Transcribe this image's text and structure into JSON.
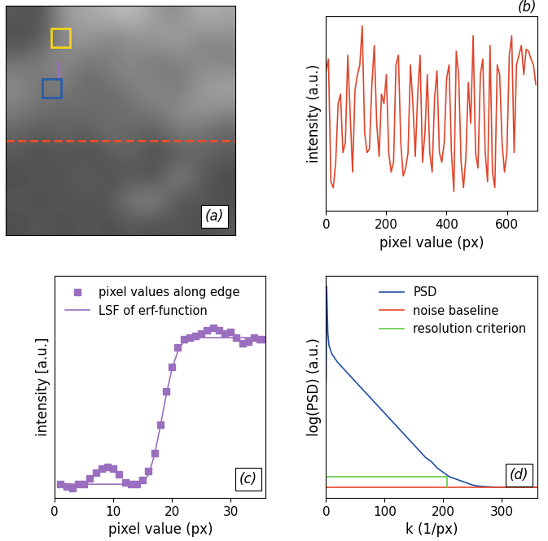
{
  "chart_data": [
    {
      "type": "heatmap",
      "tick_labels": false,
      "clim": [
        0,
        1
      ],
      "cells": [
        [
          0.35,
          0.3,
          0.6,
          0.65,
          0.7,
          0.75,
          0.6,
          0.55,
          0.7,
          0.65
        ],
        [
          0.3,
          0.35,
          0.55,
          0.6,
          0.5,
          0.55,
          0.6,
          0.65,
          0.5,
          0.55
        ],
        [
          0.45,
          0.5,
          0.55,
          0.45,
          0.5,
          0.55,
          0.45,
          0.5,
          0.55,
          0.5
        ],
        [
          0.55,
          0.45,
          0.5,
          0.4,
          0.45,
          0.5,
          0.55,
          0.45,
          0.6,
          0.65
        ],
        [
          0.5,
          0.45,
          0.4,
          0.45,
          0.4,
          0.45,
          0.5,
          0.55,
          0.6,
          0.55
        ],
        [
          0.4,
          0.35,
          0.4,
          0.35,
          0.45,
          0.4,
          0.35,
          0.5,
          0.45,
          0.4
        ],
        [
          0.35,
          0.3,
          0.35,
          0.3,
          0.35,
          0.4,
          0.3,
          0.35,
          0.4,
          0.35
        ],
        [
          0.3,
          0.35,
          0.3,
          0.4,
          0.3,
          0.35,
          0.3,
          0.55,
          0.35,
          0.3
        ],
        [
          0.35,
          0.3,
          0.35,
          0.3,
          0.35,
          0.5,
          0.55,
          0.3,
          0.35,
          0.3
        ],
        [
          0.3,
          0.35,
          0.3,
          0.35,
          0.3,
          0.35,
          0.3,
          0.35,
          0.3,
          0.35
        ]
      ],
      "annotations": [
        "(a)"
      ]
    },
    {
      "type": "line",
      "x_label": "pixel value (px)",
      "y_label": "intensity (a.u.)",
      "tick_labels": "x",
      "xlim": [
        0,
        700
      ],
      "xticks": [
        0,
        200,
        400,
        600
      ],
      "ylim": [
        0,
        1
      ],
      "yticks": [],
      "x": [
        0,
        8,
        16,
        24,
        32,
        40,
        48,
        56,
        64,
        72,
        80,
        88,
        96,
        104,
        112,
        120,
        128,
        136,
        144,
        152,
        160,
        168,
        176,
        184,
        192,
        200,
        208,
        216,
        224,
        232,
        240,
        248,
        256,
        264,
        272,
        280,
        288,
        296,
        304,
        312,
        320,
        328,
        336,
        344,
        352,
        360,
        368,
        376,
        384,
        392,
        400,
        408,
        416,
        424,
        432,
        440,
        448,
        456,
        464,
        472,
        480,
        488,
        496,
        504,
        512,
        520,
        528,
        536,
        544,
        552,
        560,
        568,
        576,
        584,
        592,
        600,
        608,
        616,
        624,
        632,
        640,
        648,
        656,
        664,
        672,
        680,
        688,
        696
      ],
      "series": [
        {
          "color": "#e0452b",
          "values": [
            0.72,
            0.78,
            0.15,
            0.12,
            0.25,
            0.55,
            0.6,
            0.3,
            0.35,
            0.8,
            0.5,
            0.2,
            0.62,
            0.7,
            0.75,
            0.95,
            0.4,
            0.3,
            0.32,
            0.65,
            0.85,
            0.45,
            0.28,
            0.6,
            0.55,
            0.7,
            0.3,
            0.2,
            0.25,
            0.75,
            0.8,
            0.35,
            0.18,
            0.22,
            0.3,
            0.75,
            0.55,
            0.28,
            0.6,
            0.8,
            0.25,
            0.4,
            0.7,
            0.3,
            0.2,
            0.58,
            0.72,
            0.3,
            0.25,
            0.35,
            0.68,
            0.75,
            0.3,
            0.1,
            0.82,
            0.7,
            0.25,
            0.12,
            0.28,
            0.66,
            0.45,
            0.9,
            0.3,
            0.22,
            0.7,
            0.78,
            0.3,
            0.15,
            0.85,
            0.2,
            0.12,
            0.75,
            0.7,
            0.35,
            0.2,
            0.3,
            0.8,
            0.9,
            0.3,
            0.75,
            0.8,
            0.85,
            0.7,
            0.83,
            0.82,
            0.78,
            0.75,
            0.65
          ]
        }
      ],
      "annotations": [
        "(b)"
      ]
    },
    {
      "type": "line",
      "x_label": "pixel value (px)",
      "y_label": "intensity [a.u.]",
      "tick_labels": "x",
      "xlim": [
        0,
        36
      ],
      "xticks": [
        0,
        10,
        20,
        30
      ],
      "ylim": [
        0,
        1.15
      ],
      "yticks": [],
      "legend": "upper left",
      "x": [
        1,
        2,
        3,
        4,
        5,
        6,
        7,
        8,
        9,
        10,
        11,
        12,
        13,
        14,
        15,
        16,
        17,
        18,
        19,
        20,
        21,
        22,
        23,
        24,
        25,
        26,
        27,
        28,
        29,
        30,
        31,
        32,
        33,
        34,
        35,
        36
      ],
      "series": [
        {
          "name": "pixel values along edge",
          "type": "scatter",
          "marker": "square",
          "color": "#9b6fc0",
          "values": [
            0.07,
            0.06,
            0.05,
            0.07,
            0.07,
            0.1,
            0.13,
            0.15,
            0.16,
            0.15,
            0.12,
            0.08,
            0.07,
            0.07,
            0.09,
            0.14,
            0.23,
            0.38,
            0.55,
            0.68,
            0.78,
            0.82,
            0.83,
            0.84,
            0.85,
            0.87,
            0.88,
            0.87,
            0.85,
            0.86,
            0.83,
            0.8,
            0.81,
            0.83,
            0.82,
            0.82
          ]
        },
        {
          "name": "LSF of erf-function",
          "type": "line",
          "line_style": "solid",
          "color": "#9b6fc0",
          "values": [
            0.07,
            0.07,
            0.07,
            0.07,
            0.07,
            0.07,
            0.07,
            0.07,
            0.07,
            0.07,
            0.07,
            0.07,
            0.07,
            0.07,
            0.08,
            0.12,
            0.22,
            0.37,
            0.53,
            0.67,
            0.76,
            0.81,
            0.83,
            0.83,
            0.83,
            0.83,
            0.83,
            0.83,
            0.83,
            0.83,
            0.83,
            0.83,
            0.83,
            0.83,
            0.83,
            0.83
          ]
        }
      ],
      "annotations": [
        "(c)"
      ]
    },
    {
      "type": "line",
      "x_label": "k (1/px)",
      "y_label": "log(PSD) (a.u.)",
      "tick_labels": "x",
      "xlim": [
        0,
        360
      ],
      "xticks": [
        0,
        100,
        200,
        300
      ],
      "ylim": [
        0,
        1.05
      ],
      "yticks": [],
      "legend": "upper right",
      "series": [
        {
          "name": "PSD",
          "color": "#1f4fa8",
          "line_style": "solid",
          "x": [
            0,
            1,
            3,
            5,
            10,
            20,
            30,
            40,
            50,
            60,
            70,
            80,
            90,
            100,
            110,
            120,
            130,
            140,
            150,
            160,
            170,
            180,
            190,
            200,
            210,
            220,
            230,
            240,
            250,
            260,
            270,
            280,
            290,
            300,
            320,
            340,
            360
          ],
          "values": [
            0.55,
            1.0,
            0.78,
            0.72,
            0.68,
            0.64,
            0.61,
            0.58,
            0.55,
            0.52,
            0.49,
            0.46,
            0.43,
            0.4,
            0.37,
            0.34,
            0.31,
            0.28,
            0.25,
            0.22,
            0.19,
            0.17,
            0.14,
            0.12,
            0.1,
            0.09,
            0.08,
            0.07,
            0.06,
            0.055,
            0.053,
            0.051,
            0.05,
            0.05,
            0.05,
            0.05,
            0.05
          ]
        },
        {
          "name": "noise baseline",
          "color": "#e8442a",
          "line_style": "solid",
          "x": [
            0,
            360
          ],
          "values": [
            0.05,
            0.05
          ]
        },
        {
          "name": "resolution criterion",
          "color": "#66cc44",
          "line_style": "solid",
          "x": [
            0,
            207,
            207
          ],
          "values": [
            0.1,
            0.1,
            0.05
          ]
        }
      ],
      "annotations": [
        "(d)"
      ]
    }
  ]
}
